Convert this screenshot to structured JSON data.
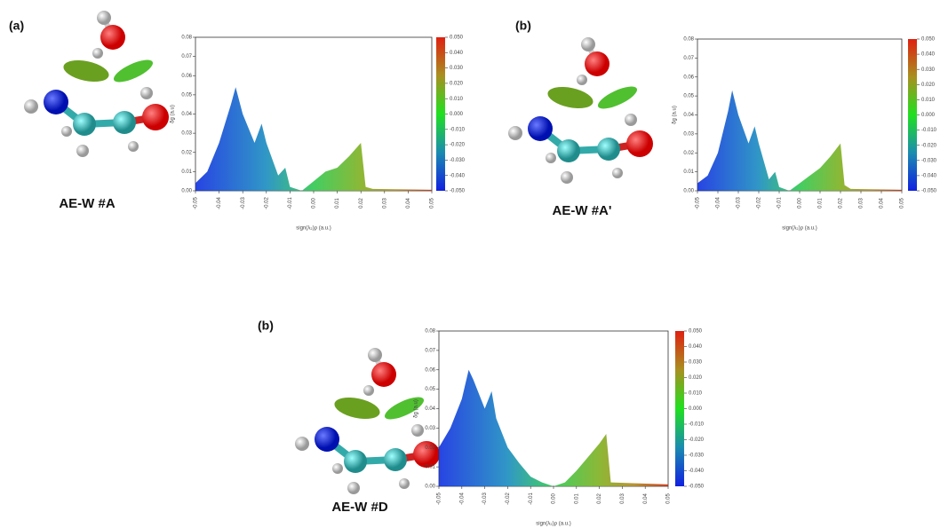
{
  "chart_data": [
    {
      "type": "area",
      "panel_label": "(a)",
      "caption": "AE-W #A",
      "xlabel": "sign(λ₂)ρ (a.u.)",
      "ylabel": "δg (a.u)",
      "x": [
        -0.05,
        -0.045,
        -0.04,
        -0.035,
        -0.033,
        -0.03,
        -0.025,
        -0.022,
        -0.02,
        -0.015,
        -0.012,
        -0.01,
        -0.005,
        0.0,
        0.005,
        0.01,
        0.015,
        0.02,
        0.022,
        0.025,
        0.05
      ],
      "values": [
        0.004,
        0.01,
        0.025,
        0.045,
        0.054,
        0.04,
        0.025,
        0.035,
        0.025,
        0.008,
        0.012,
        0.002,
        0,
        0.005,
        0.01,
        0.012,
        0.018,
        0.025,
        0.002,
        0.001,
        0.0005
      ],
      "xlim": [
        -0.05,
        0.05
      ],
      "ylim": [
        0,
        0.08
      ],
      "xticks": [
        {
          "value": -0.05,
          "label": "-0.05"
        },
        {
          "value": -0.04,
          "label": "-0.04"
        },
        {
          "value": -0.03,
          "label": "-0.03"
        },
        {
          "value": -0.02,
          "label": "-0.02"
        },
        {
          "value": -0.01,
          "label": "-0.01"
        },
        {
          "value": 0,
          "label": "0.00"
        },
        {
          "value": 0.01,
          "label": "0.01"
        },
        {
          "value": 0.02,
          "label": "0.02"
        },
        {
          "value": 0.03,
          "label": "0.03"
        },
        {
          "value": 0.04,
          "label": "0.04"
        },
        {
          "value": 0.05,
          "label": "0.05"
        }
      ],
      "yticks": [
        {
          "value": 0,
          "label": "0.00"
        },
        {
          "value": 0.01,
          "label": "0.01"
        },
        {
          "value": 0.02,
          "label": "0.02"
        },
        {
          "value": 0.03,
          "label": "0.03"
        },
        {
          "value": 0.04,
          "label": "0.04"
        },
        {
          "value": 0.05,
          "label": "0.05"
        },
        {
          "value": 0.06,
          "label": "0.06"
        },
        {
          "value": 0.07,
          "label": "0.07"
        },
        {
          "value": 0.08,
          "label": "0.08"
        }
      ],
      "clim": [
        -0.05,
        0.05
      ],
      "cticks": [
        {
          "value": 0.05,
          "label": "0.050"
        },
        {
          "value": 0.04,
          "label": "0.040"
        },
        {
          "value": 0.03,
          "label": "0.030"
        },
        {
          "value": 0.02,
          "label": "0.020"
        },
        {
          "value": 0.01,
          "label": "0.010"
        },
        {
          "value": 0,
          "label": "0.000"
        },
        {
          "value": -0.01,
          "label": "-0.010"
        },
        {
          "value": -0.02,
          "label": "-0.020"
        },
        {
          "value": -0.03,
          "label": "-0.030"
        },
        {
          "value": -0.04,
          "label": "-0.040"
        },
        {
          "value": -0.05,
          "label": "-0.050"
        }
      ]
    },
    {
      "type": "area",
      "panel_label": "(b)",
      "caption": "AE-W #A'",
      "xlabel": "sign(λ₂)ρ (a.u.)",
      "ylabel": "δg (a.u)",
      "x": [
        -0.05,
        -0.045,
        -0.04,
        -0.035,
        -0.033,
        -0.03,
        -0.025,
        -0.022,
        -0.02,
        -0.015,
        -0.012,
        -0.01,
        -0.005,
        0.0,
        0.005,
        0.01,
        0.015,
        0.02,
        0.022,
        0.025,
        0.05
      ],
      "values": [
        0.004,
        0.008,
        0.02,
        0.042,
        0.053,
        0.04,
        0.025,
        0.034,
        0.025,
        0.006,
        0.01,
        0.002,
        0,
        0.004,
        0.008,
        0.012,
        0.018,
        0.025,
        0.003,
        0.001,
        0.0005
      ],
      "xlim": [
        -0.05,
        0.05
      ],
      "ylim": [
        0,
        0.08
      ],
      "xticks": [
        {
          "value": -0.05,
          "label": "-0.05"
        },
        {
          "value": -0.04,
          "label": "-0.04"
        },
        {
          "value": -0.03,
          "label": "-0.03"
        },
        {
          "value": -0.02,
          "label": "-0.02"
        },
        {
          "value": -0.01,
          "label": "-0.01"
        },
        {
          "value": 0,
          "label": "0.00"
        },
        {
          "value": 0.01,
          "label": "0.01"
        },
        {
          "value": 0.02,
          "label": "0.02"
        },
        {
          "value": 0.03,
          "label": "0.03"
        },
        {
          "value": 0.04,
          "label": "0.04"
        },
        {
          "value": 0.05,
          "label": "0.05"
        }
      ],
      "yticks": [
        {
          "value": 0,
          "label": "0.00"
        },
        {
          "value": 0.01,
          "label": "0.01"
        },
        {
          "value": 0.02,
          "label": "0.02"
        },
        {
          "value": 0.03,
          "label": "0.03"
        },
        {
          "value": 0.04,
          "label": "0.04"
        },
        {
          "value": 0.05,
          "label": "0.05"
        },
        {
          "value": 0.06,
          "label": "0.06"
        },
        {
          "value": 0.07,
          "label": "0.07"
        },
        {
          "value": 0.08,
          "label": "0.08"
        }
      ],
      "clim": [
        -0.05,
        0.05
      ],
      "cticks": [
        {
          "value": 0.05,
          "label": "0.050"
        },
        {
          "value": 0.04,
          "label": "0.040"
        },
        {
          "value": 0.03,
          "label": "0.030"
        },
        {
          "value": 0.02,
          "label": "0.020"
        },
        {
          "value": 0.01,
          "label": "0.010"
        },
        {
          "value": 0,
          "label": "0.000"
        },
        {
          "value": -0.01,
          "label": "-0.010"
        },
        {
          "value": -0.02,
          "label": "-0.020"
        },
        {
          "value": -0.03,
          "label": "-0.030"
        },
        {
          "value": -0.04,
          "label": "-0.040"
        },
        {
          "value": -0.05,
          "label": "-0.050"
        }
      ]
    },
    {
      "type": "area",
      "panel_label": "(b)",
      "caption": "AE-W #D",
      "xlabel": "sign(λ₂)ρ (a.u.)",
      "ylabel": "δg (a.u)",
      "x": [
        -0.05,
        -0.045,
        -0.04,
        -0.037,
        -0.035,
        -0.03,
        -0.027,
        -0.025,
        -0.02,
        -0.015,
        -0.01,
        -0.005,
        0.0,
        0.005,
        0.01,
        0.015,
        0.02,
        0.023,
        0.025,
        0.05
      ],
      "values": [
        0.02,
        0.03,
        0.045,
        0.06,
        0.055,
        0.04,
        0.049,
        0.035,
        0.02,
        0.012,
        0.005,
        0.002,
        0,
        0.002,
        0.008,
        0.015,
        0.022,
        0.027,
        0.002,
        0.001
      ],
      "xlim": [
        -0.05,
        0.05
      ],
      "ylim": [
        0,
        0.08
      ],
      "xticks": [
        {
          "value": -0.05,
          "label": "-0.05"
        },
        {
          "value": -0.04,
          "label": "-0.04"
        },
        {
          "value": -0.03,
          "label": "-0.03"
        },
        {
          "value": -0.02,
          "label": "-0.02"
        },
        {
          "value": -0.01,
          "label": "-0.01"
        },
        {
          "value": 0,
          "label": "0.00"
        },
        {
          "value": 0.01,
          "label": "0.01"
        },
        {
          "value": 0.02,
          "label": "0.02"
        },
        {
          "value": 0.03,
          "label": "0.03"
        },
        {
          "value": 0.04,
          "label": "0.04"
        },
        {
          "value": 0.05,
          "label": "0.05"
        }
      ],
      "yticks": [
        {
          "value": 0,
          "label": "0.00"
        },
        {
          "value": 0.01,
          "label": "0.01"
        },
        {
          "value": 0.02,
          "label": "0.02"
        },
        {
          "value": 0.03,
          "label": "0.03"
        },
        {
          "value": 0.04,
          "label": "0.04"
        },
        {
          "value": 0.05,
          "label": "0.05"
        },
        {
          "value": 0.06,
          "label": "0.06"
        },
        {
          "value": 0.07,
          "label": "0.07"
        },
        {
          "value": 0.08,
          "label": "0.08"
        }
      ],
      "clim": [
        -0.05,
        0.05
      ],
      "cticks": [
        {
          "value": 0.05,
          "label": "0.050"
        },
        {
          "value": 0.04,
          "label": "0.040"
        },
        {
          "value": 0.03,
          "label": "0.030"
        },
        {
          "value": 0.02,
          "label": "0.020"
        },
        {
          "value": 0.01,
          "label": "0.010"
        },
        {
          "value": 0,
          "label": "0.000"
        },
        {
          "value": -0.01,
          "label": "-0.010"
        },
        {
          "value": -0.02,
          "label": "-0.020"
        },
        {
          "value": -0.03,
          "label": "-0.030"
        },
        {
          "value": -0.04,
          "label": "-0.040"
        },
        {
          "value": -0.05,
          "label": "-0.050"
        }
      ]
    }
  ]
}
